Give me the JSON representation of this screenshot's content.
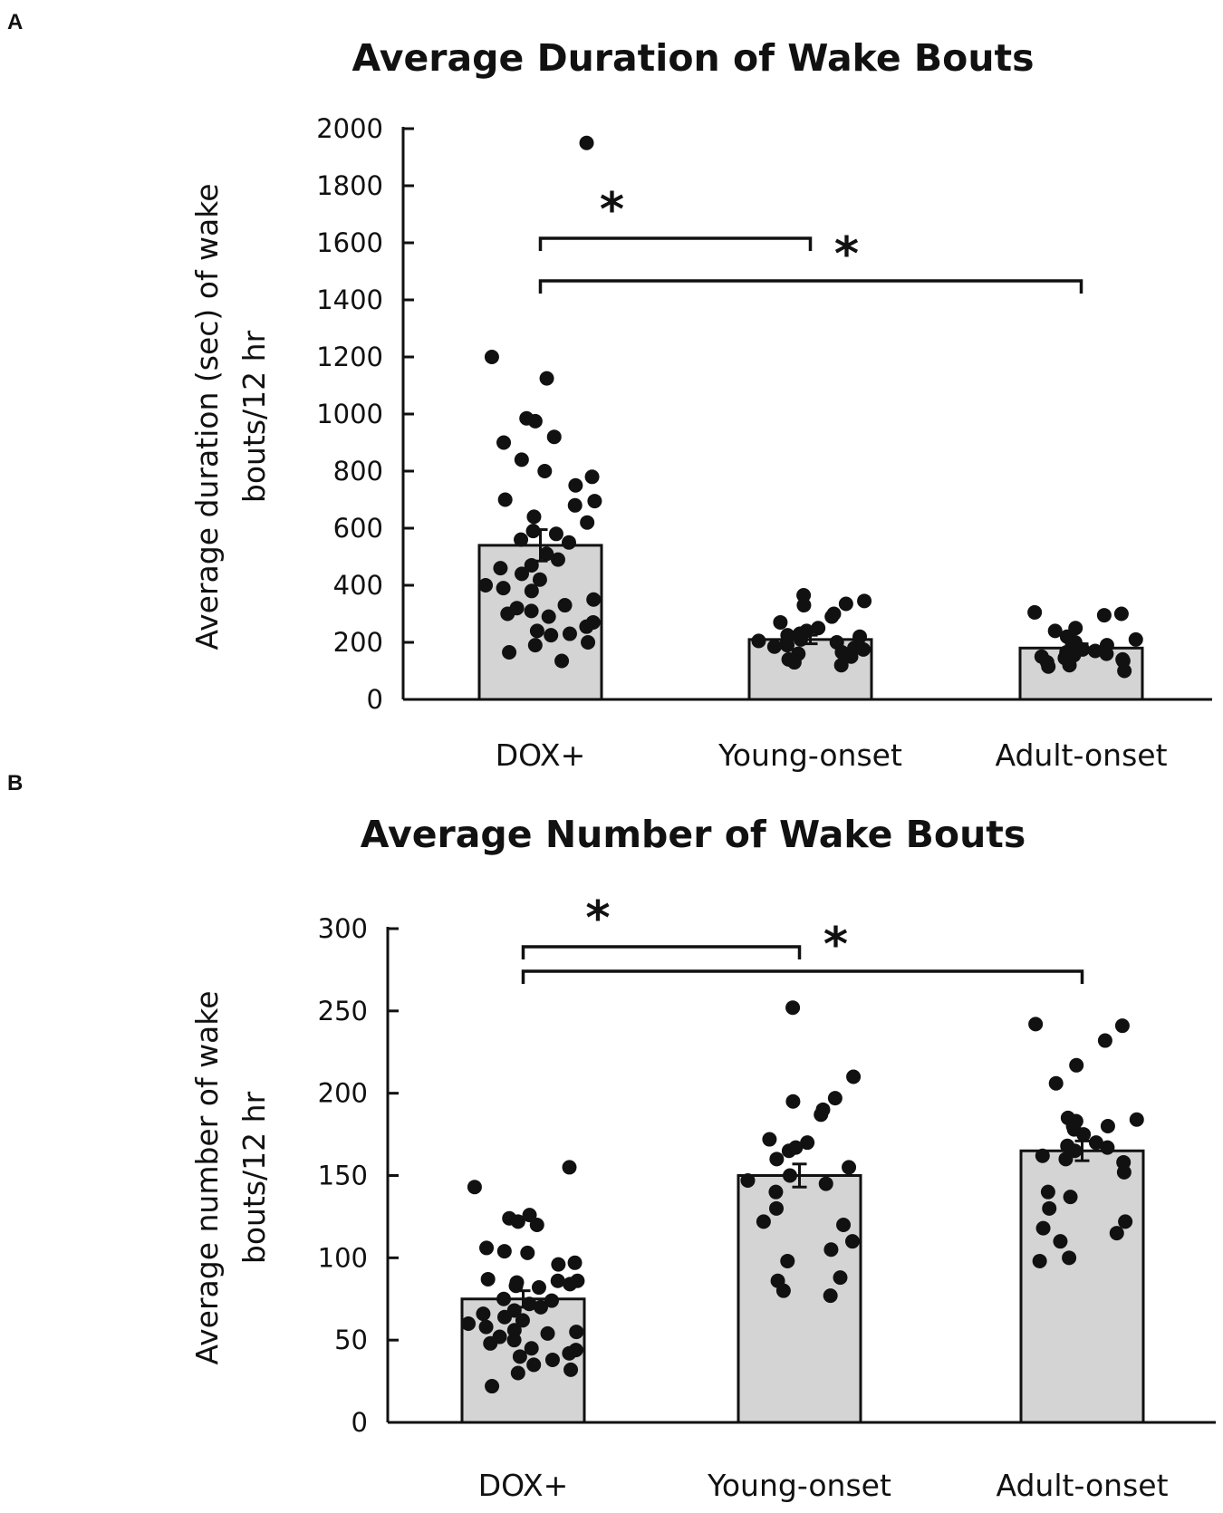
{
  "colors": {
    "bar_fill": "#d4d4d4",
    "ink": "#111111"
  },
  "chart_data": [
    {
      "panel": "A",
      "type": "bar",
      "title": "Average Duration of Wake Bouts",
      "ylabel_lines": [
        "Average duration (sec) of wake",
        "bouts/12 hr"
      ],
      "xlabel": "",
      "categories": [
        "DOX+",
        "Young-onset",
        "Adult-onset"
      ],
      "values": [
        540,
        210,
        180
      ],
      "errors": [
        55,
        15,
        15
      ],
      "ylim": [
        0,
        2000
      ],
      "yticks": [
        0,
        200,
        400,
        600,
        800,
        1000,
        1200,
        1400,
        1600,
        1800,
        2000
      ],
      "significance": [
        {
          "from": 0,
          "to": 1,
          "label": "*"
        },
        {
          "from": 0,
          "to": 2,
          "label": "*"
        }
      ],
      "points": [
        [
          1950,
          1200,
          1125,
          985,
          975,
          920,
          900,
          840,
          800,
          780,
          750,
          700,
          695,
          680,
          640,
          620,
          590,
          580,
          560,
          550,
          510,
          490,
          470,
          460,
          440,
          420,
          400,
          390,
          380,
          350,
          330,
          320,
          310,
          300,
          290,
          270,
          255,
          240,
          230,
          225,
          200,
          190,
          165,
          135
        ],
        [
          365,
          345,
          335,
          330,
          300,
          290,
          270,
          250,
          240,
          230,
          225,
          220,
          210,
          205,
          200,
          195,
          190,
          185,
          180,
          175,
          165,
          160,
          150,
          140,
          130,
          120
        ],
        [
          305,
          300,
          295,
          250,
          240,
          220,
          210,
          200,
          195,
          190,
          180,
          175,
          170,
          165,
          160,
          155,
          150,
          145,
          140,
          135,
          130,
          120,
          115,
          100
        ]
      ]
    },
    {
      "panel": "B",
      "type": "bar",
      "title": "Average Number of Wake Bouts",
      "ylabel_lines": [
        "Average number of wake",
        "bouts/12 hr"
      ],
      "xlabel": "",
      "categories": [
        "DOX+",
        "Young-onset",
        "Adult-onset"
      ],
      "values": [
        75,
        150,
        165
      ],
      "errors": [
        5,
        7,
        6
      ],
      "ylim": [
        0,
        300
      ],
      "yticks": [
        0,
        50,
        100,
        150,
        200,
        250,
        300
      ],
      "significance": [
        {
          "from": 0,
          "to": 1,
          "label": "*"
        },
        {
          "from": 0,
          "to": 2,
          "label": "*"
        }
      ],
      "points": [
        [
          155,
          143,
          126,
          124,
          122,
          120,
          106,
          104,
          103,
          97,
          96,
          87,
          86,
          86,
          85,
          84,
          83,
          82,
          75,
          74,
          72,
          70,
          68,
          66,
          64,
          62,
          60,
          58,
          56,
          55,
          54,
          52,
          50,
          48,
          45,
          44,
          42,
          40,
          38,
          35,
          32,
          30,
          22
        ],
        [
          252,
          210,
          197,
          195,
          190,
          187,
          172,
          170,
          167,
          165,
          160,
          155,
          150,
          147,
          145,
          140,
          130,
          122,
          120,
          110,
          105,
          98,
          88,
          86,
          80,
          77
        ],
        [
          242,
          241,
          232,
          217,
          206,
          185,
          184,
          183,
          180,
          180,
          178,
          175,
          170,
          168,
          167,
          165,
          162,
          160,
          158,
          152,
          140,
          137,
          130,
          122,
          118,
          115,
          110,
          100,
          98
        ]
      ]
    }
  ]
}
